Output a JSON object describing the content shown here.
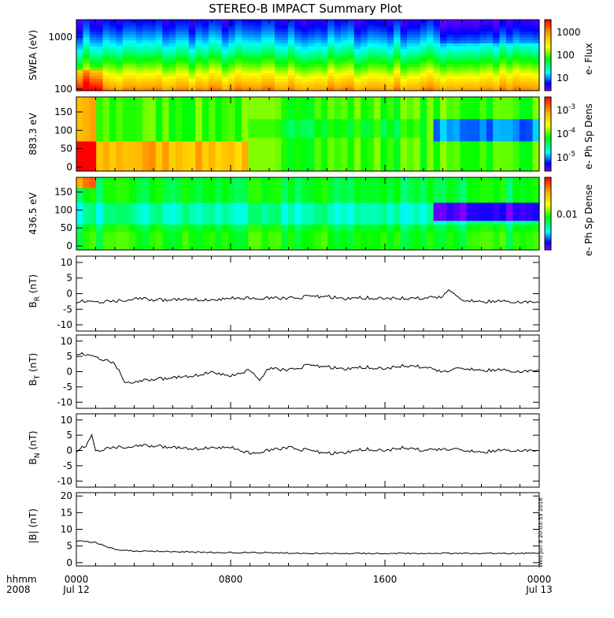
{
  "chart_data": {
    "type": "heatmap",
    "title": "STEREO-B IMPACT Summary Plot",
    "time_axis": {
      "unit_label": "hhmm",
      "year_label": "2008",
      "ticks": [
        {
          "hhmm": "0000",
          "date": "Jul 12"
        },
        {
          "hhmm": "0800",
          "date": ""
        },
        {
          "hhmm": "1600",
          "date": ""
        },
        {
          "hhmm": "0000",
          "date": "Jul 13"
        }
      ],
      "range_hours": [
        0,
        24
      ]
    },
    "stamp": "Wed Jun  8 20:03:55 2016",
    "panels": [
      {
        "id": "swea",
        "type": "heatmap",
        "ylabel": "SWEA (eV)",
        "y_scale": "log",
        "ylim": [
          100,
          2000
        ],
        "y_ticks": [
          "1000",
          "100"
        ],
        "colorbar": {
          "label": "e- Flux",
          "ticks": [
            "1000",
            "100",
            "10"
          ],
          "scale": "log"
        },
        "description_values": {
          "low_energy_early_flux": "high (red)",
          "high_energy_flux": "low (blue)"
        }
      },
      {
        "id": "pad883",
        "type": "heatmap",
        "ylabel": "883.3 eV",
        "ylim": [
          0,
          180
        ],
        "y_ticks": [
          "150",
          "100",
          "50",
          "0"
        ],
        "colorbar": {
          "label": "e- Ph Sp Dens",
          "ticks": [
            "10",
            "10",
            "10"
          ],
          "exponents": [
            "-3",
            "-4",
            "-5"
          ],
          "scale": "log"
        }
      },
      {
        "id": "pad436",
        "type": "heatmap",
        "ylabel": "436.5 eV",
        "ylim": [
          0,
          180
        ],
        "y_ticks": [
          "150",
          "100",
          "50",
          "0"
        ],
        "colorbar": {
          "label": "e- Ph Sp Dense",
          "ticks": [
            "0.01"
          ],
          "scale": "log"
        }
      },
      {
        "id": "br",
        "type": "line",
        "ylabel_main": "B",
        "ylabel_sub": "R",
        "ylabel_unit": "(nT)",
        "ylim": [
          -12,
          12
        ],
        "y_ticks": [
          10,
          5,
          0,
          -5,
          -10
        ],
        "x": [
          0,
          1,
          2,
          3,
          4,
          5,
          6,
          7,
          8,
          9,
          10,
          11,
          12,
          13,
          14,
          15,
          16,
          17,
          18,
          19,
          19.3,
          19.7,
          20,
          21,
          22,
          23,
          24
        ],
        "y": [
          -2.5,
          -2.5,
          -2.5,
          -1.5,
          -2,
          -2,
          -1.8,
          -2,
          -1.5,
          -1.5,
          -1.5,
          -1.5,
          -1,
          -1,
          -1.5,
          -1.3,
          -1.5,
          -1.5,
          -1.5,
          -1,
          1.5,
          -1.2,
          -2.2,
          -2.5,
          -2.5,
          -2.7,
          -2.7
        ]
      },
      {
        "id": "bt",
        "type": "line",
        "ylabel_main": "B",
        "ylabel_sub": "T",
        "ylabel_unit": "(nT)",
        "ylim": [
          -12,
          12
        ],
        "y_ticks": [
          10,
          5,
          0,
          -5,
          -10
        ],
        "x": [
          0,
          1,
          2,
          2.5,
          3,
          4,
          5,
          6,
          7,
          8,
          9,
          9.5,
          10,
          11,
          12,
          13,
          14,
          15,
          16,
          17,
          18,
          19,
          20,
          21,
          22,
          23,
          24
        ],
        "y": [
          6,
          5,
          2.5,
          -3,
          -3.5,
          -2.5,
          -2,
          -1.5,
          0,
          -1.5,
          0.5,
          -2.5,
          1,
          0.5,
          2,
          1.5,
          1,
          1.5,
          1,
          2,
          1.5,
          0,
          1,
          0.5,
          0.5,
          0,
          0.5
        ]
      },
      {
        "id": "bn",
        "type": "line",
        "ylabel_main": "B",
        "ylabel_sub": "N",
        "ylabel_unit": "(nT)",
        "ylim": [
          -12,
          12
        ],
        "y_ticks": [
          10,
          5,
          0,
          -5,
          -10
        ],
        "x": [
          0,
          0.5,
          0.8,
          1,
          2,
          3,
          4,
          5,
          6,
          7,
          8,
          9,
          10,
          11,
          12,
          13,
          14,
          15,
          16,
          17,
          18,
          19,
          20,
          21,
          22,
          23,
          24
        ],
        "y": [
          0,
          1.5,
          5,
          0,
          1,
          1.5,
          1.5,
          1,
          0.5,
          1,
          1,
          -1,
          0,
          1,
          0,
          -1,
          -0.5,
          0.5,
          0,
          1,
          0,
          0.5,
          0,
          -0.5,
          0,
          0,
          0
        ]
      },
      {
        "id": "bmag",
        "type": "line",
        "ylabel_main": "|B|",
        "ylabel_sub": "",
        "ylabel_unit": "(nT)",
        "ylim": [
          -1,
          21
        ],
        "y_ticks": [
          20,
          15,
          10,
          5,
          0
        ],
        "x": [
          0,
          1,
          2,
          3,
          4,
          6,
          8,
          10,
          12,
          14,
          16,
          18,
          20,
          22,
          24
        ],
        "y": [
          6.5,
          6,
          4,
          3.5,
          3.5,
          3.2,
          3,
          3,
          2.8,
          2.8,
          2.8,
          2.8,
          2.8,
          2.8,
          2.8
        ]
      }
    ]
  }
}
